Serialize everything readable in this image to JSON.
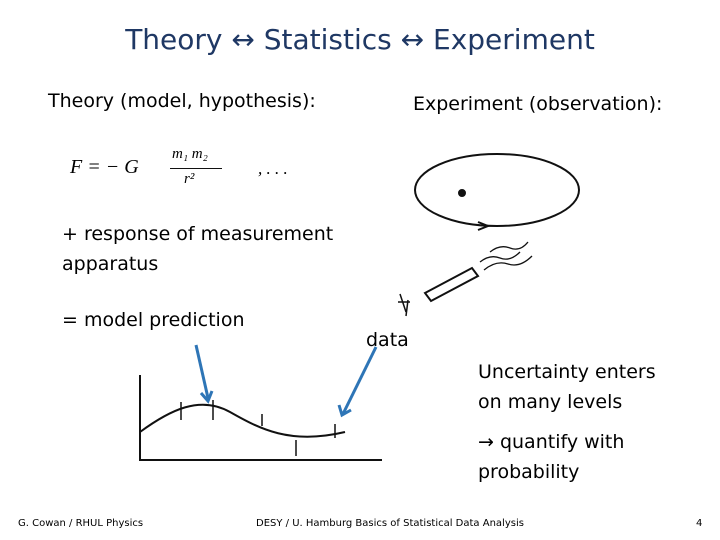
{
  "slide": {
    "title": "Theory ↔ Statistics ↔ Experiment",
    "theory_heading": "Theory (model, hypothesis):",
    "experiment_heading": "Experiment (observation):",
    "formula": {
      "lhs": "F = − G",
      "numerator": "m₁ m₂",
      "denominator": "r²",
      "tail": ", . . ."
    },
    "response": [
      "+ response of measurement",
      "apparatus"
    ],
    "prediction": "= model prediction",
    "data_label": "data",
    "uncertainty": [
      "Uncertainty enters",
      "on many levels"
    ],
    "quantify": [
      "→  quantify with",
      "probability"
    ]
  },
  "footer": {
    "left": "G. Cowan / RHUL Physics",
    "center": "DESY / U. Hamburg Basics of Statistical Data Analysis",
    "page": "4"
  }
}
